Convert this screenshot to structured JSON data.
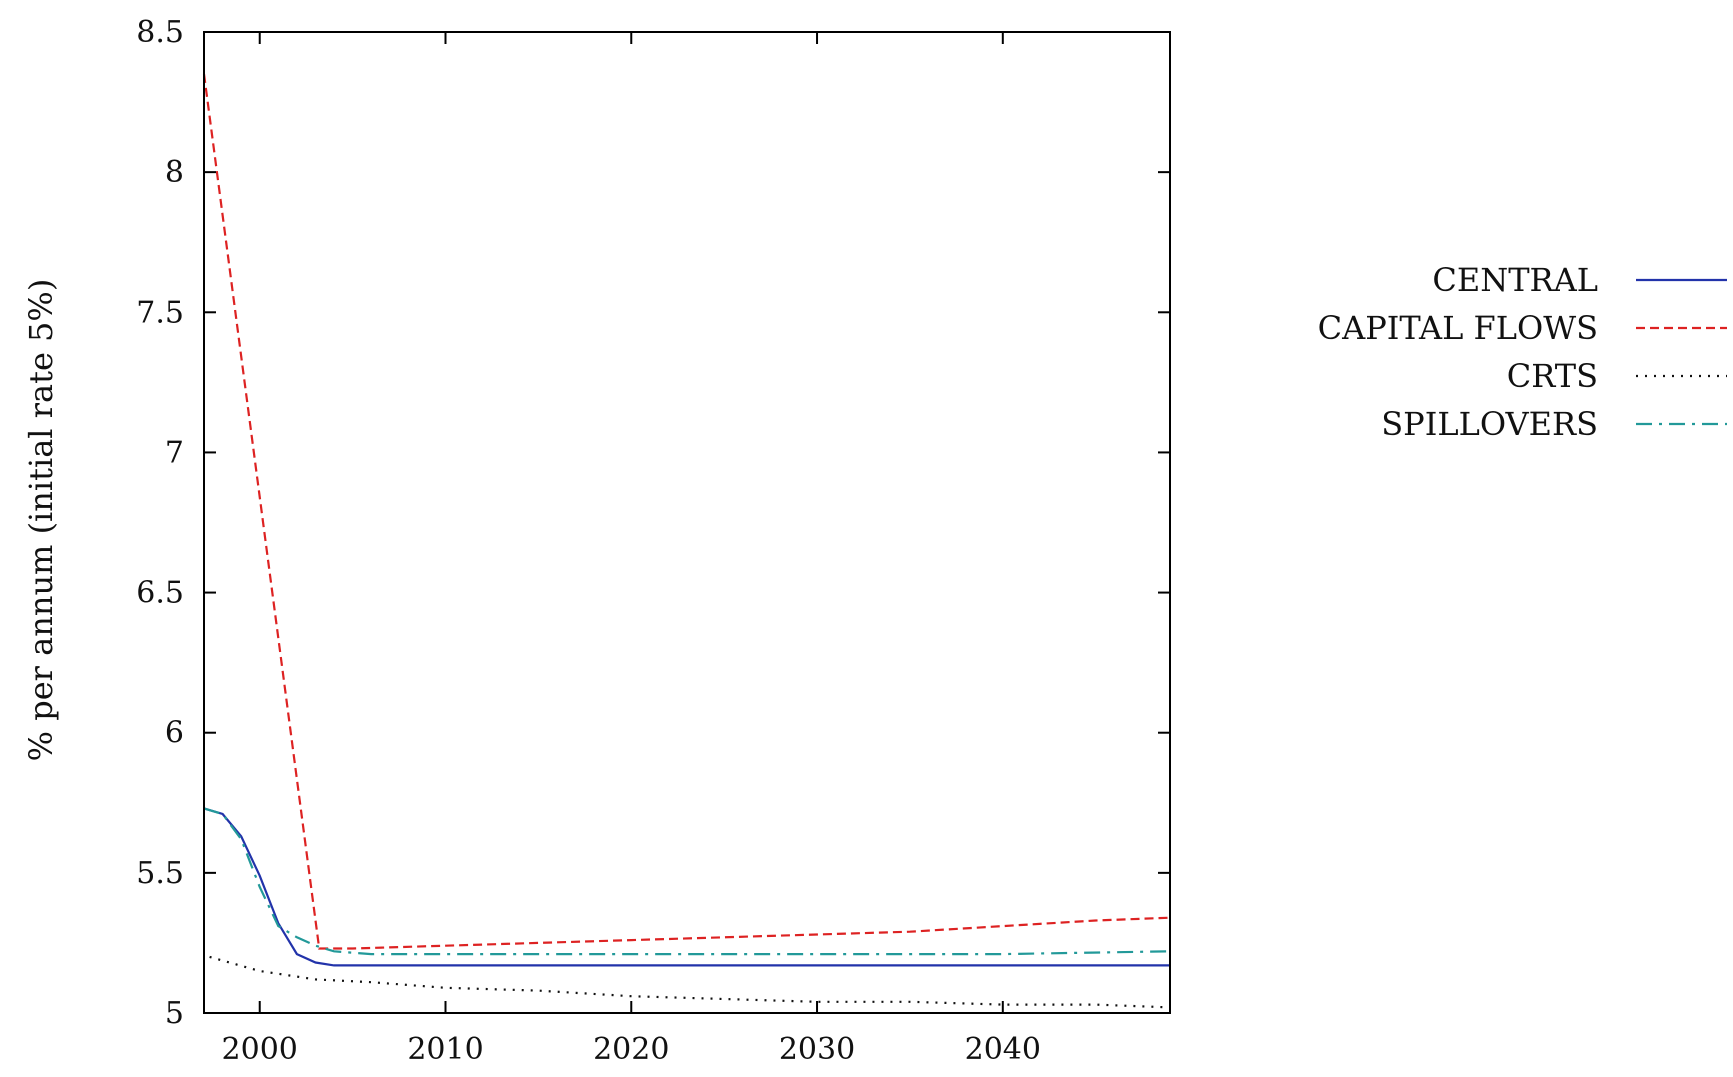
{
  "chart_data": {
    "type": "line",
    "title": "",
    "xlabel": "",
    "ylabel": "% per annum (initial rate 5%)",
    "xlim": [
      1997,
      2049
    ],
    "ylim": [
      5,
      8.5
    ],
    "xticks": [
      2000,
      2010,
      2020,
      2030,
      2040
    ],
    "yticks": [
      5,
      5.5,
      6,
      6.5,
      7,
      7.5,
      8,
      8.5
    ],
    "grid": false,
    "legend_position": "right",
    "series": [
      {
        "name": "CENTRAL",
        "color": "#2233aa",
        "dash": "solid",
        "points": [
          [
            1997,
            5.73
          ],
          [
            1998,
            5.71
          ],
          [
            1999,
            5.63
          ],
          [
            2000,
            5.49
          ],
          [
            2001,
            5.32
          ],
          [
            2002,
            5.21
          ],
          [
            2003,
            5.18
          ],
          [
            2004,
            5.17
          ],
          [
            2010,
            5.17
          ],
          [
            2020,
            5.17
          ],
          [
            2030,
            5.17
          ],
          [
            2040,
            5.17
          ],
          [
            2049,
            5.17
          ]
        ]
      },
      {
        "name": "CAPITAL FLOWS",
        "color": "#dd2222",
        "dash": "dashed",
        "points": [
          [
            1997,
            8.35
          ],
          [
            2003.2,
            5.23
          ],
          [
            2005,
            5.23
          ],
          [
            2010,
            5.24
          ],
          [
            2015,
            5.25
          ],
          [
            2020,
            5.26
          ],
          [
            2025,
            5.27
          ],
          [
            2030,
            5.28
          ],
          [
            2035,
            5.29
          ],
          [
            2040,
            5.31
          ],
          [
            2045,
            5.33
          ],
          [
            2049,
            5.34
          ]
        ]
      },
      {
        "name": "CRTS",
        "color": "#111111",
        "dash": "dotted",
        "points": [
          [
            1997.3,
            5.2
          ],
          [
            2000,
            5.15
          ],
          [
            2003,
            5.12
          ],
          [
            2006,
            5.11
          ],
          [
            2010,
            5.09
          ],
          [
            2015,
            5.08
          ],
          [
            2020,
            5.06
          ],
          [
            2025,
            5.05
          ],
          [
            2030,
            5.04
          ],
          [
            2035,
            5.04
          ],
          [
            2040,
            5.03
          ],
          [
            2045,
            5.03
          ],
          [
            2049,
            5.02
          ]
        ]
      },
      {
        "name": "SPILLOVERS",
        "color": "#229999",
        "dash": "dashdot",
        "points": [
          [
            1997,
            5.73
          ],
          [
            1998,
            5.71
          ],
          [
            1999,
            5.62
          ],
          [
            2000,
            5.45
          ],
          [
            2001,
            5.31
          ],
          [
            2002,
            5.27
          ],
          [
            2003,
            5.24
          ],
          [
            2004,
            5.22
          ],
          [
            2006,
            5.21
          ],
          [
            2010,
            5.21
          ],
          [
            2020,
            5.21
          ],
          [
            2030,
            5.21
          ],
          [
            2040,
            5.21
          ],
          [
            2049,
            5.22
          ]
        ]
      }
    ]
  }
}
